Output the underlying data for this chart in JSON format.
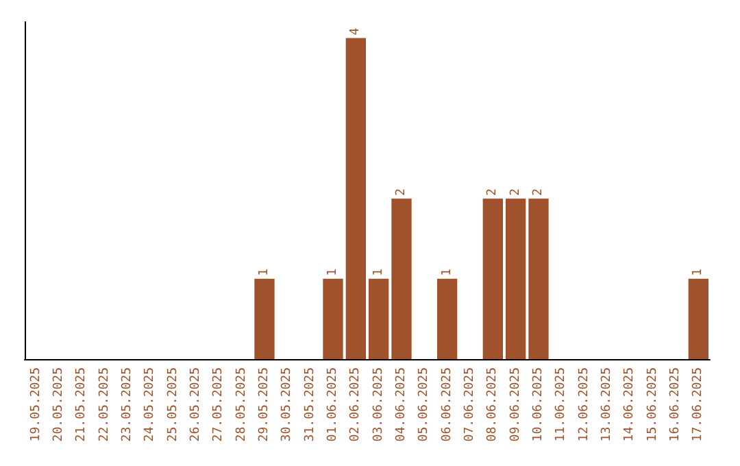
{
  "chart_data": {
    "type": "bar",
    "categories": [
      "19.05.2025",
      "20.05.2025",
      "21.05.2025",
      "22.05.2025",
      "23.05.2025",
      "24.05.2025",
      "25.05.2025",
      "26.05.2025",
      "27.05.2025",
      "28.05.2025",
      "29.05.2025",
      "30.05.2025",
      "31.05.2025",
      "01.06.2025",
      "02.06.2025",
      "03.06.2025",
      "04.06.2025",
      "05.06.2025",
      "06.06.2025",
      "07.06.2025",
      "08.06.2025",
      "09.06.2025",
      "10.06.2025",
      "11.06.2025",
      "12.06.2025",
      "13.06.2025",
      "14.06.2025",
      "15.06.2025",
      "16.06.2025",
      "17.06.2025"
    ],
    "values": [
      0,
      0,
      0,
      0,
      0,
      0,
      0,
      0,
      0,
      0,
      1,
      0,
      0,
      1,
      4,
      1,
      2,
      0,
      1,
      0,
      2,
      2,
      2,
      0,
      0,
      0,
      0,
      0,
      0,
      1
    ],
    "value_labels": [
      null,
      null,
      null,
      null,
      null,
      null,
      null,
      null,
      null,
      null,
      "1",
      null,
      null,
      "1",
      "4",
      "1",
      "2",
      null,
      "1",
      null,
      "2",
      "2",
      "2",
      null,
      null,
      null,
      null,
      null,
      null,
      "1"
    ],
    "color": "#a0522d",
    "ylim": [
      0,
      4.2
    ],
    "tick_labels": "x"
  }
}
